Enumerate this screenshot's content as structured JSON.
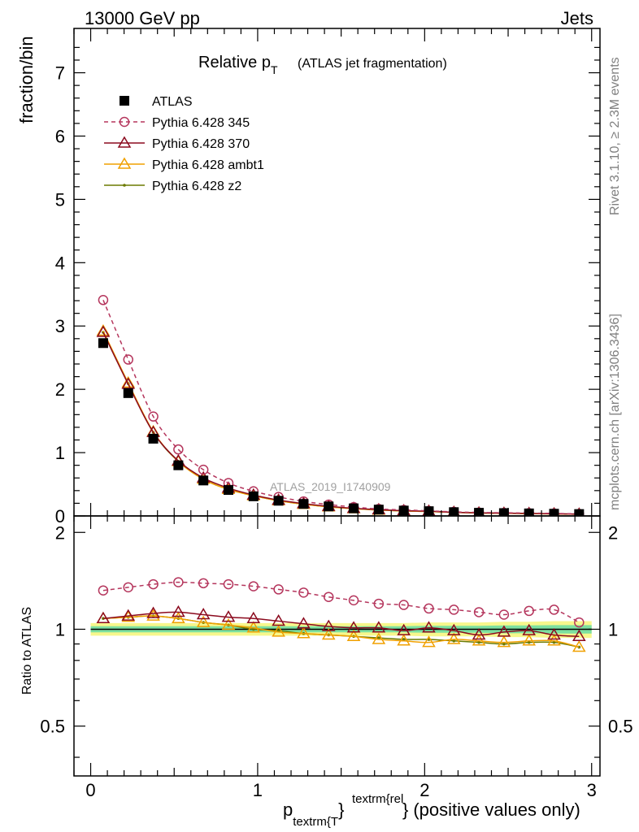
{
  "header": {
    "left": "13000 GeV pp",
    "right": "Jets"
  },
  "title": {
    "main": "Relative p",
    "sub": "T",
    "rest": "(ATLAS jet fragmentation)"
  },
  "side": {
    "rivet": "Rivet 3.1.10, ≥ 2.3M events",
    "mcplots": "mcplots.cern.ch [arXiv:1306.3436]"
  },
  "watermark": "ATLAS_2019_I1740909",
  "xlabel": {
    "p": "p",
    "sub": "textrm{T",
    "sup": "textrm{rel",
    "close": "}",
    "rest": "(positive values only)"
  },
  "colors": {
    "atlas": "#000000",
    "p345": "#b5365d",
    "p370": "#8b0a1e",
    "ambt1": "#f0a000",
    "z2": "#6b7a00",
    "band_outer": "#f7f78c",
    "band_inner": "#7de0a0"
  },
  "chart_data": {
    "type": "line",
    "x": [
      0.075,
      0.225,
      0.375,
      0.525,
      0.675,
      0.825,
      0.975,
      1.125,
      1.275,
      1.425,
      1.575,
      1.725,
      1.875,
      2.025,
      2.175,
      2.325,
      2.475,
      2.625,
      2.775,
      2.925
    ],
    "xlim": [
      -0.1,
      3.05
    ],
    "main": {
      "ylabel": "fraction/bin",
      "ylim": [
        0,
        7.7
      ],
      "yticks": [
        0,
        1,
        2,
        3,
        4,
        5,
        6,
        7
      ],
      "series": [
        {
          "name": "ATLAS",
          "marker": "square",
          "values": [
            2.73,
            1.94,
            1.22,
            0.8,
            0.56,
            0.41,
            0.31,
            0.24,
            0.19,
            0.15,
            0.12,
            0.1,
            0.085,
            0.075,
            0.06,
            0.05,
            0.045,
            0.04,
            0.035,
            0.03
          ]
        },
        {
          "name": "Pythia 6.428 345",
          "marker": "circle",
          "values": [
            3.41,
            2.47,
            1.57,
            1.05,
            0.73,
            0.52,
            0.39,
            0.3,
            0.23,
            0.18,
            0.14,
            0.11,
            0.095,
            0.08,
            0.065,
            0.055,
            0.05,
            0.045,
            0.04,
            0.032
          ]
        },
        {
          "name": "Pythia 6.428 370",
          "marker": "triangle",
          "values": [
            2.9,
            2.08,
            1.32,
            0.87,
            0.6,
            0.44,
            0.33,
            0.25,
            0.195,
            0.152,
            0.12,
            0.1,
            0.083,
            0.075,
            0.058,
            0.048,
            0.044,
            0.04,
            0.034,
            0.029
          ]
        },
        {
          "name": "Pythia 6.428 ambt1",
          "marker": "triangle",
          "values": [
            2.92,
            2.1,
            1.33,
            0.86,
            0.58,
            0.42,
            0.32,
            0.24,
            0.185,
            0.145,
            0.115,
            0.093,
            0.078,
            0.07,
            0.056,
            0.046,
            0.042,
            0.037,
            0.032,
            0.027
          ]
        },
        {
          "name": "Pythia 6.428 z2",
          "marker": "dot",
          "values": [
            2.9,
            2.09,
            1.32,
            0.86,
            0.58,
            0.42,
            0.32,
            0.24,
            0.185,
            0.145,
            0.115,
            0.093,
            0.079,
            0.07,
            0.056,
            0.046,
            0.042,
            0.037,
            0.032,
            0.027
          ]
        }
      ]
    },
    "ratio": {
      "ylabel": "Ratio to ATLAS",
      "ylim": [
        0.35,
        2.25
      ],
      "yticks": [
        0.5,
        1,
        2
      ],
      "series": [
        {
          "name": "Pythia 6.428 345",
          "values": [
            1.32,
            1.35,
            1.38,
            1.4,
            1.39,
            1.38,
            1.36,
            1.33,
            1.3,
            1.26,
            1.23,
            1.2,
            1.19,
            1.16,
            1.15,
            1.13,
            1.11,
            1.14,
            1.15,
            1.05
          ]
        },
        {
          "name": "Pythia 6.428 370",
          "values": [
            1.08,
            1.1,
            1.12,
            1.13,
            1.11,
            1.09,
            1.08,
            1.06,
            1.04,
            1.02,
            1.01,
            1.01,
            0.99,
            1.01,
            0.99,
            0.96,
            0.98,
            0.99,
            0.96,
            0.95
          ]
        },
        {
          "name": "Pythia 6.428 ambt1",
          "values": [
            1.08,
            1.09,
            1.1,
            1.08,
            1.05,
            1.03,
            1.01,
            0.98,
            0.97,
            0.96,
            0.95,
            0.93,
            0.92,
            0.91,
            0.93,
            0.92,
            0.91,
            0.92,
            0.92,
            0.88
          ]
        },
        {
          "name": "Pythia 6.428 z2",
          "values": [
            1.08,
            1.09,
            1.1,
            1.08,
            1.05,
            1.03,
            1.0,
            0.99,
            0.97,
            0.96,
            0.95,
            0.94,
            0.93,
            0.93,
            0.92,
            0.91,
            0.9,
            0.91,
            0.91,
            0.88
          ]
        }
      ],
      "band_outer": [
        0.045,
        0.045,
        0.045,
        0.045,
        0.045,
        0.045,
        0.045,
        0.045,
        0.045,
        0.045,
        0.045,
        0.045,
        0.045,
        0.05,
        0.05,
        0.05,
        0.055,
        0.055,
        0.06,
        0.06
      ],
      "band_inner": [
        0.022,
        0.022,
        0.022,
        0.022,
        0.022,
        0.022,
        0.022,
        0.022,
        0.022,
        0.022,
        0.022,
        0.022,
        0.022,
        0.025,
        0.025,
        0.025,
        0.028,
        0.028,
        0.03,
        0.03
      ]
    },
    "xticks": [
      0,
      1,
      2,
      3
    ]
  }
}
